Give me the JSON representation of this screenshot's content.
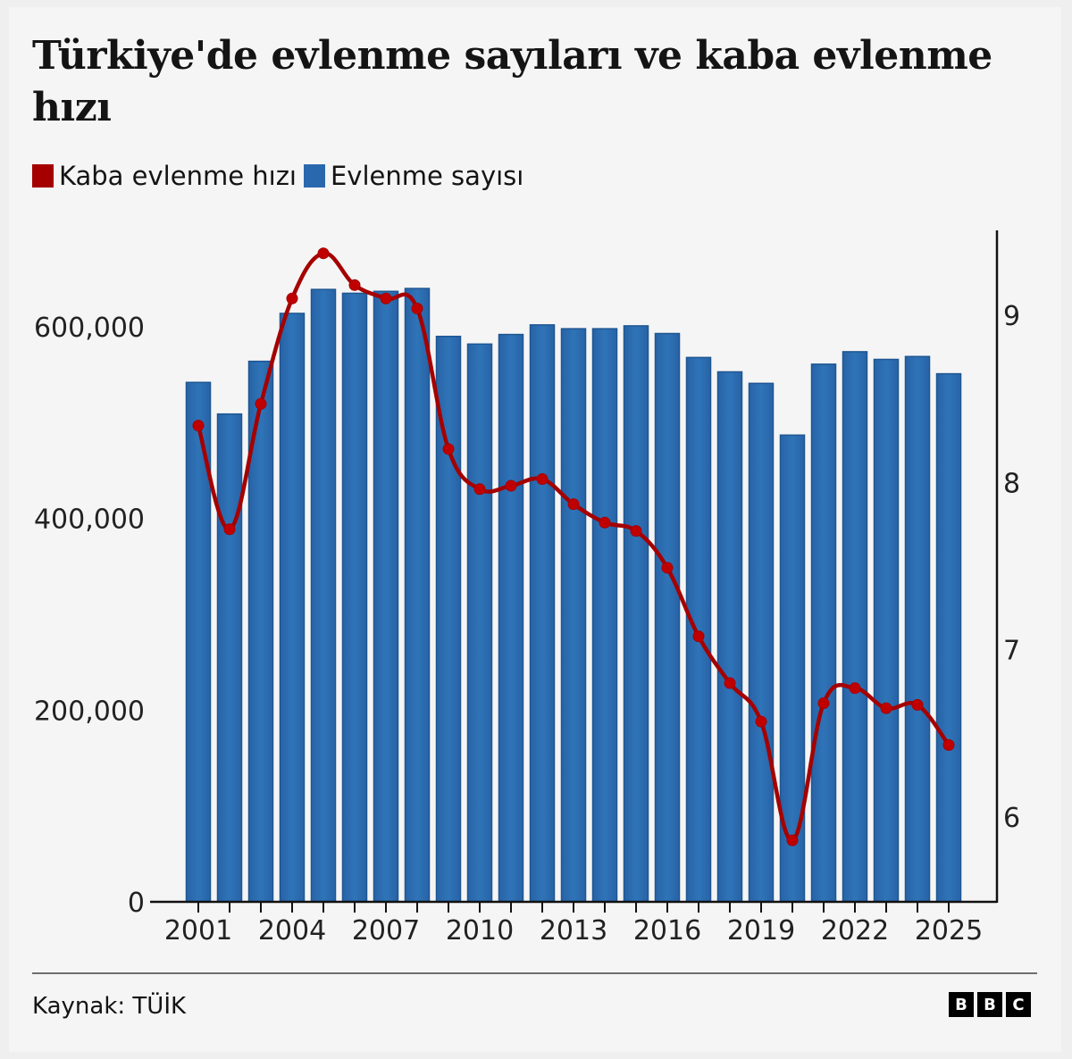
{
  "title": "Türkiye'de evlenme sayıları ve kaba evlenme hızı",
  "legend": [
    {
      "label": "Kaba evlenme hızı",
      "color": "#a50000"
    },
    {
      "label": "Evlenme sayısı",
      "color": "#2a68ad"
    }
  ],
  "source": "Kaynak: TÜİK",
  "logo": [
    "B",
    "B",
    "C"
  ],
  "chart_data": {
    "type": "bar",
    "title": "Türkiye'de evlenme sayıları ve kaba evlenme hızı",
    "xlabel": "",
    "categories": [
      2001,
      2002,
      2003,
      2004,
      2005,
      2006,
      2007,
      2008,
      2009,
      2010,
      2011,
      2012,
      2013,
      2014,
      2015,
      2016,
      2017,
      2018,
      2019,
      2020,
      2021,
      2022,
      2023,
      2024,
      2025
    ],
    "x_tick_labels": [
      "2001",
      "2004",
      "2007",
      "2010",
      "2013",
      "2016",
      "2019",
      "2022",
      "2025"
    ],
    "series": [
      {
        "name": "Evlenme sayısı",
        "type": "bar",
        "axis": "left",
        "color": "#2a68ad",
        "values": [
          542000,
          509000,
          564000,
          614000,
          639000,
          635000,
          637000,
          640000,
          590000,
          582000,
          592000,
          602000,
          598000,
          598000,
          601000,
          593000,
          568000,
          553000,
          541000,
          487000,
          561000,
          574000,
          566000,
          569000,
          551000
        ]
      },
      {
        "name": "Kaba evlenme hızı",
        "type": "line",
        "axis": "right",
        "color": "#a50000",
        "values": [
          8.34,
          7.72,
          8.47,
          9.1,
          9.37,
          9.18,
          9.1,
          9.04,
          8.2,
          7.96,
          7.98,
          8.02,
          7.87,
          7.76,
          7.71,
          7.49,
          7.08,
          6.8,
          6.57,
          5.86,
          6.68,
          6.77,
          6.65,
          6.67,
          6.43
        ]
      }
    ],
    "left_axis": {
      "ticks": [
        0,
        200000,
        400000,
        600000
      ],
      "tick_labels": [
        "0",
        "200,000",
        "400,000",
        "600,000"
      ],
      "ylim": [
        0,
        700000
      ]
    },
    "right_axis": {
      "ticks": [
        6,
        7,
        8,
        9
      ],
      "tick_labels": [
        "6",
        "7",
        "8",
        "9"
      ],
      "ylim": [
        5.5,
        9.5
      ]
    },
    "grid": false,
    "legend_position": "top-left"
  }
}
